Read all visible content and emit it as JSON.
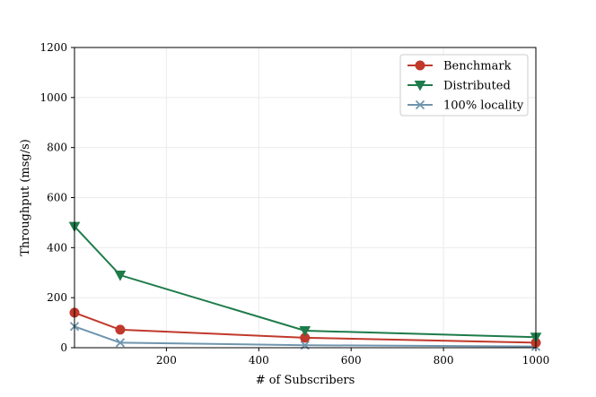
{
  "chart_data": {
    "type": "line",
    "title": "",
    "xlabel": "# of Subscribers",
    "ylabel": "Throughput (msg/s)",
    "xlim": [
      1,
      1000
    ],
    "ylim": [
      0,
      1200
    ],
    "xticks": [
      200,
      400,
      600,
      800,
      1000
    ],
    "yticks": [
      0,
      200,
      400,
      600,
      800,
      1000,
      1200
    ],
    "grid": true,
    "legend_position": "top-right",
    "x": [
      1,
      100,
      500,
      1000
    ],
    "series": [
      {
        "name": "Benchmark",
        "values": [
          140,
          72,
          40,
          20
        ],
        "color": "#c0392b",
        "marker": "circle"
      },
      {
        "name": "Distributed",
        "values": [
          485,
          290,
          68,
          42
        ],
        "color": "#1e7b4a",
        "marker": "triangle-down"
      },
      {
        "name": "100% locality",
        "values": [
          85,
          20,
          10,
          5
        ],
        "color": "#6f95ad",
        "marker": "x"
      }
    ]
  }
}
